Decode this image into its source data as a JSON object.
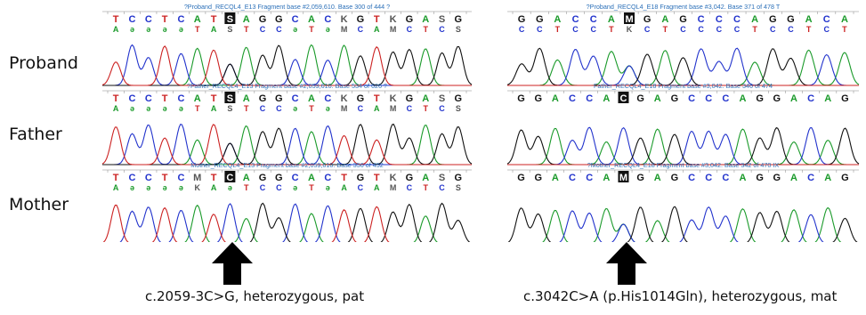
{
  "rows": [
    "Proband",
    "Father",
    "Mother"
  ],
  "colors": {
    "A": "#1a9a2a",
    "C": "#2233cc",
    "G": "#111111",
    "T": "#cc2222",
    "header_text": "#2a6fb8",
    "marker_bg": "#111111",
    "arrow": "#000000"
  },
  "left": {
    "caption": "c.2059-3C>G, heterozygous, pat",
    "traces": [
      {
        "header": "?Proband_RECQL4_E13 Fragment base #2,059,610. Base 300 of 444 ?",
        "top_seq": [
          "T",
          "C",
          "C",
          "T",
          "C",
          "A",
          "T",
          "S",
          "A",
          "G",
          "G",
          "C",
          "A",
          "C",
          "K",
          "G",
          "T",
          "K",
          "G",
          "A",
          "S",
          "G"
        ],
        "bottom_seq": [
          "A",
          "ə",
          "ə",
          "ə",
          "ə",
          "T",
          "A",
          "S",
          "T",
          "C",
          "C",
          "ə",
          "T",
          "ə",
          "M",
          "C",
          "A",
          "M",
          "C",
          "T",
          "C",
          "S"
        ],
        "marker_index": 7,
        "peaks": "TCCTCATCAGGCACAGTGGAGG"
      },
      {
        "header": "?Father_RECQL4_E13 Fragment base #2,059,610. Base 534 of 626 ?",
        "top_seq": [
          "T",
          "C",
          "C",
          "T",
          "C",
          "A",
          "T",
          "S",
          "A",
          "G",
          "G",
          "C",
          "A",
          "C",
          "K",
          "G",
          "T",
          "K",
          "G",
          "A",
          "S",
          "G"
        ],
        "bottom_seq": [
          "A",
          "ə",
          "ə",
          "ə",
          "ə",
          "T",
          "A",
          "S",
          "T",
          "C",
          "C",
          "ə",
          "T",
          "ə",
          "M",
          "C",
          "A",
          "M",
          "C",
          "T",
          "C",
          "S"
        ],
        "marker_index": 7,
        "peaks": "TCCTCATCAGGCACTGTGGAGG"
      },
      {
        "header": "Mother_RECQL4_E13 Fragment base #2,059,610. Base 356 of 452",
        "top_seq": [
          "T",
          "C",
          "C",
          "T",
          "C",
          "M",
          "T",
          "C",
          "A",
          "G",
          "G",
          "C",
          "A",
          "C",
          "T",
          "G",
          "T",
          "K",
          "G",
          "A",
          "S",
          "G"
        ],
        "bottom_seq": [
          "A",
          "ə",
          "ə",
          "ə",
          "ə",
          "K",
          "A",
          "ə",
          "T",
          "C",
          "C",
          "ə",
          "T",
          "ə",
          "A",
          "C",
          "A",
          "M",
          "C",
          "T",
          "C",
          "S"
        ],
        "marker_index": 7,
        "peaks": "TCCTCATCAGGCACTGTGGAGG"
      }
    ]
  },
  "right": {
    "caption": "c.3042C>A (p.His1014Gln), heterozygous, mat",
    "traces": [
      {
        "header": "?Proband_RECQL4_E18 Fragment base #3,042. Base 371 of 478 T",
        "top_seq": [
          "G",
          "G",
          "A",
          "C",
          "C",
          "A",
          "M",
          "G",
          "A",
          "G",
          "C",
          "C",
          "C",
          "A",
          "G",
          "G",
          "A",
          "C",
          "A"
        ],
        "bottom_seq": [
          "C",
          "C",
          "T",
          "C",
          "C",
          "T",
          "K",
          "C",
          "T",
          "C",
          "C",
          "C",
          "C",
          "T",
          "C",
          "C",
          "T",
          "C",
          "T"
        ],
        "marker_index": 6,
        "peaks": "GGACCACGAGCCCAGGACA"
      },
      {
        "header": "Father_RECQL4_E18 Fragment base #3,042. Base 346 of 474",
        "top_seq": [
          "G",
          "G",
          "A",
          "C",
          "C",
          "A",
          "C",
          "G",
          "A",
          "G",
          "C",
          "C",
          "C",
          "A",
          "G",
          "G",
          "A",
          "C",
          "A",
          "G"
        ],
        "bottom_seq": [],
        "marker_index": 6,
        "peaks": "GGACCACGAGCCCAGGACAG"
      },
      {
        "header": "?Mother_RECQL4_E18 Fragment base #3,042. Base 342 of 470 IX",
        "top_seq": [
          "G",
          "G",
          "A",
          "C",
          "C",
          "A",
          "M",
          "G",
          "A",
          "G",
          "C",
          "C",
          "C",
          "A",
          "G",
          "G",
          "A",
          "C",
          "A",
          "G"
        ],
        "bottom_seq": [],
        "marker_index": 6,
        "peaks": "GGACCACGAGCCCAGGACAG"
      }
    ]
  }
}
